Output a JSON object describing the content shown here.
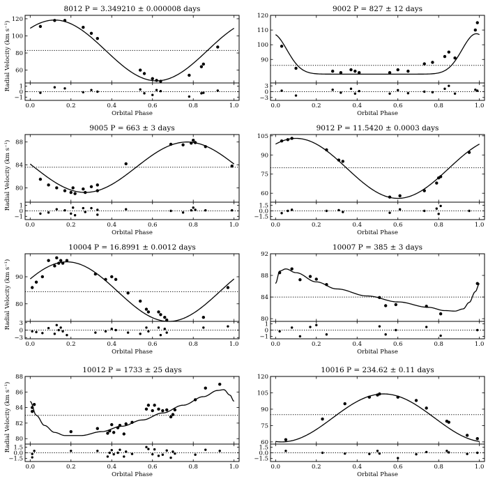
{
  "chart_data": [
    {
      "type": "scatter",
      "title": "8012 P = 3.349210 ± 0.000008 days",
      "xlabel": "Orbital Phase",
      "ylabel": "Radial Velocity (km s⁻¹)",
      "xlim": [
        -0.025,
        1.025
      ],
      "xticks": [
        0,
        0.2,
        0.4,
        0.6,
        0.8,
        1.0
      ],
      "xticklabels": [
        "0.0",
        "0.2",
        "0.4",
        "0.6",
        "0.8",
        "1.0"
      ],
      "ylim": [
        45,
        124
      ],
      "yticks": [
        60,
        80,
        100,
        120
      ],
      "yticklabels": [
        "60",
        "80",
        "100",
        "120"
      ],
      "rlim": [
        -1.6,
        1.6
      ],
      "rticks": [
        -1,
        0,
        1
      ],
      "rticklabels": [
        "−1",
        "0",
        "1"
      ],
      "systemic": 83,
      "model": {
        "type": "sine",
        "mean": 83,
        "amp": 35.5,
        "phase0": 0.12
      },
      "points": {
        "x": [
          0.05,
          0.12,
          0.17,
          0.26,
          0.3,
          0.33,
          0.54,
          0.56,
          0.6,
          0.62,
          0.64,
          0.78,
          0.84,
          0.85,
          0.92
        ],
        "y": [
          111,
          118,
          118,
          110,
          103,
          97,
          60,
          56,
          50,
          48,
          47,
          54,
          64,
          67,
          87
        ]
      },
      "residuals": {
        "x": [
          0.05,
          0.12,
          0.17,
          0.26,
          0.3,
          0.33,
          0.54,
          0.56,
          0.6,
          0.62,
          0.64,
          0.78,
          0.84,
          0.85,
          0.92
        ],
        "y": [
          -0.2,
          0.8,
          0.6,
          -0.1,
          0.3,
          0.0,
          0.4,
          -0.3,
          -0.6,
          0.3,
          0.1,
          -0.9,
          -0.3,
          -0.2,
          0.2
        ]
      }
    },
    {
      "type": "scatter",
      "title": "9002 P = 827 ± 12 days",
      "xlabel": "Orbital Phase",
      "ylabel": "",
      "xlim": [
        -0.025,
        1.025
      ],
      "xticks": [
        0,
        0.2,
        0.4,
        0.6,
        0.8,
        1.0
      ],
      "xticklabels": [
        "0.0",
        "0.2",
        "0.4",
        "0.6",
        "0.8",
        "1.0"
      ],
      "ylim": [
        74,
        120
      ],
      "yticks": [
        90,
        100,
        110,
        120
      ],
      "yticklabels": [
        "90",
        "100",
        "110",
        "120"
      ],
      "rlim": [
        -4.5,
        4.5
      ],
      "rticks": [
        -3,
        0,
        3
      ],
      "rticklabels": [
        "−3",
        "0",
        "3"
      ],
      "systemic": 86,
      "model": {
        "type": "ecc",
        "base": 80,
        "amp": 27.5,
        "phase0": 0.985,
        "width": 0.07
      },
      "points": {
        "x": [
          0.03,
          0.1,
          0.28,
          0.32,
          0.37,
          0.39,
          0.41,
          0.56,
          0.6,
          0.65,
          0.73,
          0.77,
          0.83,
          0.85,
          0.88,
          0.98,
          0.99
        ],
        "y": [
          99,
          84,
          82,
          81,
          83,
          82,
          81,
          81,
          83,
          82,
          87,
          88,
          92,
          95,
          91,
          110,
          115
        ]
      },
      "residuals": {
        "x": [
          0.03,
          0.1,
          0.28,
          0.32,
          0.37,
          0.39,
          0.41,
          0.56,
          0.6,
          0.65,
          0.73,
          0.77,
          0.83,
          0.85,
          0.88,
          0.98,
          0.99
        ],
        "y": [
          0.5,
          -2.0,
          1.0,
          -0.5,
          1.5,
          -1.0,
          0.3,
          -1.0,
          0.8,
          -0.8,
          0.0,
          -0.3,
          1.5,
          3.0,
          -1.0,
          1.0,
          0.5
        ]
      }
    },
    {
      "type": "scatter",
      "title": "9005 P = 663 ± 3 days",
      "xlabel": "Orbital Phase",
      "ylabel": "Radial Velocity (km s⁻¹)",
      "xlim": [
        -0.025,
        1.025
      ],
      "xticks": [
        0,
        0.2,
        0.4,
        0.6,
        0.8,
        1.0
      ],
      "xticklabels": [
        "0.0",
        "0.2",
        "0.4",
        "0.6",
        "0.8",
        "1.0"
      ],
      "ylim": [
        77.5,
        89.3
      ],
      "yticks": [
        80,
        84,
        88
      ],
      "yticklabels": [
        "80",
        "84",
        "88"
      ],
      "rlim": [
        -1.6,
        1.6
      ],
      "rticks": [
        -1,
        0,
        1
      ],
      "rticklabels": [
        "−1",
        "0",
        "1"
      ],
      "systemic": 83.6,
      "model": {
        "type": "sine",
        "mean": 83.6,
        "amp": 4.4,
        "phase0": 0.77
      },
      "points": {
        "x": [
          0.05,
          0.09,
          0.13,
          0.17,
          0.2,
          0.21,
          0.22,
          0.26,
          0.27,
          0.3,
          0.33,
          0.33,
          0.47,
          0.69,
          0.75,
          0.79,
          0.8,
          0.81,
          0.86,
          0.99
        ],
        "y": [
          81.5,
          80.5,
          80.0,
          79.5,
          79.2,
          80.0,
          79.0,
          79.8,
          79.2,
          80.2,
          80.5,
          79.5,
          84.2,
          87.6,
          87.5,
          87.8,
          88.3,
          87.9,
          87.2,
          83.8
        ]
      },
      "residuals": {
        "x": [
          0.05,
          0.09,
          0.13,
          0.17,
          0.2,
          0.21,
          0.22,
          0.26,
          0.27,
          0.3,
          0.33,
          0.33,
          0.47,
          0.69,
          0.75,
          0.79,
          0.8,
          0.81,
          0.86,
          0.99
        ],
        "y": [
          -0.5,
          -0.3,
          0.3,
          0.1,
          -0.5,
          0.6,
          -0.8,
          0.5,
          -0.2,
          0.5,
          0.2,
          -0.7,
          0.3,
          0.0,
          -0.3,
          0.1,
          0.6,
          0.2,
          0.1,
          0.1
        ]
      }
    },
    {
      "type": "scatter",
      "title": "9012 P = 11.5420 ± 0.0003 days",
      "xlabel": "Orbital Phase",
      "ylabel": "",
      "xlim": [
        -0.025,
        1.025
      ],
      "xticks": [
        0,
        0.2,
        0.4,
        0.6,
        0.8,
        1.0
      ],
      "xticklabels": [
        "0.0",
        "0.2",
        "0.4",
        "0.6",
        "0.8",
        "1.0"
      ],
      "ylim": [
        53,
        106
      ],
      "yticks": [
        60,
        75,
        90,
        105
      ],
      "yticklabels": [
        "60",
        "75",
        "90",
        "105"
      ],
      "rlim": [
        -2.3,
        2.3
      ],
      "rticks": [
        -1.5,
        0,
        1.5
      ],
      "rticklabels": [
        "−1.5",
        "0.0",
        "1.5"
      ],
      "systemic": 80,
      "model": {
        "type": "sine",
        "mean": 79.5,
        "amp": 23.5,
        "phase0": 0.1
      },
      "points": {
        "x": [
          0.03,
          0.06,
          0.08,
          0.25,
          0.31,
          0.33,
          0.56,
          0.61,
          0.73,
          0.79,
          0.8,
          0.81,
          0.95
        ],
        "y": [
          101,
          102,
          103,
          94,
          86,
          85,
          57,
          58,
          62,
          68,
          72,
          73,
          92
        ]
      },
      "residuals": {
        "x": [
          0.03,
          0.06,
          0.08,
          0.25,
          0.31,
          0.33,
          0.56,
          0.61,
          0.73,
          0.79,
          0.8,
          0.81,
          0.95
        ],
        "y": [
          -0.6,
          0.0,
          0.3,
          0.0,
          0.2,
          -0.3,
          -0.5,
          0.4,
          0.0,
          0.6,
          -0.8,
          1.3,
          0.0
        ]
      }
    },
    {
      "type": "scatter",
      "title": "10004 P = 16.8991 ± 0.0012 days",
      "xlabel": "Orbital Phase",
      "ylabel": "Radial Velocity (km s⁻¹)",
      "xlim": [
        -0.025,
        1.025
      ],
      "xticks": [
        0,
        0.2,
        0.4,
        0.6,
        0.8,
        1.0
      ],
      "xticklabels": [
        "0.0",
        "0.2",
        "0.4",
        "0.6",
        "0.8",
        "1.0"
      ],
      "ylim": [
        73.5,
        98.5
      ],
      "yticks": [
        80,
        90
      ],
      "yticklabels": [
        "80",
        "90"
      ],
      "rlim": [
        -3.5,
        3.5
      ],
      "rticks": [
        -3,
        0,
        3
      ],
      "rticklabels": [
        "−3",
        "0",
        "3"
      ],
      "systemic": 84.5,
      "model": {
        "type": "sine",
        "mean": 84.5,
        "amp": 11,
        "phase0": 0.18
      },
      "points": {
        "x": [
          0.01,
          0.03,
          0.06,
          0.09,
          0.12,
          0.13,
          0.14,
          0.15,
          0.16,
          0.18,
          0.32,
          0.37,
          0.4,
          0.42,
          0.48,
          0.54,
          0.57,
          0.58,
          0.63,
          0.64,
          0.66,
          0.67,
          0.85,
          0.97
        ],
        "y": [
          86,
          88,
          90,
          96,
          94,
          97,
          95,
          96,
          95,
          96,
          91,
          89,
          90,
          89,
          84,
          81,
          78,
          77,
          77,
          76,
          75,
          74,
          75,
          86
        ]
      },
      "residuals": {
        "x": [
          0.01,
          0.03,
          0.06,
          0.09,
          0.12,
          0.13,
          0.14,
          0.15,
          0.16,
          0.18,
          0.32,
          0.37,
          0.4,
          0.42,
          0.48,
          0.54,
          0.57,
          0.58,
          0.63,
          0.64,
          0.66,
          0.67,
          0.85,
          0.97
        ],
        "y": [
          -0.5,
          -0.8,
          -1.2,
          0.8,
          -1.5,
          2.0,
          0.0,
          1.0,
          -0.5,
          -2.0,
          -1.0,
          -0.5,
          0.5,
          0.0,
          -1.0,
          -1.5,
          1.0,
          -0.5,
          1.0,
          -2.0,
          0.5,
          -1.0,
          1.0,
          1.5
        ]
      }
    },
    {
      "type": "scatter",
      "title": "10007 P = 385 ± 3 days",
      "xlabel": "Orbital Phase",
      "ylabel": "",
      "xlim": [
        -0.025,
        1.025
      ],
      "xticks": [
        0,
        0.2,
        0.4,
        0.6,
        0.8,
        1.0
      ],
      "xticklabels": [
        "0.0",
        "0.2",
        "0.4",
        "0.6",
        "0.8",
        "1.0"
      ],
      "ylim": [
        79.5,
        92
      ],
      "yticks": [
        80,
        84,
        88,
        92
      ],
      "yticklabels": [
        "80",
        "84",
        "88",
        "92"
      ],
      "rlim": [
        -1.4,
        1.4
      ],
      "rticks": [
        -1,
        0,
        1
      ],
      "rticklabels": [
        "−1",
        "0",
        "1"
      ],
      "systemic": 84,
      "model": {
        "type": "knots",
        "x": [
          0.0,
          0.02,
          0.05,
          0.1,
          0.2,
          0.3,
          0.45,
          0.6,
          0.75,
          0.83,
          0.88,
          0.92,
          0.95,
          0.98,
          1.0
        ],
        "y": [
          86.5,
          88.8,
          89.2,
          88.5,
          86.8,
          85.5,
          84.2,
          83.1,
          82.1,
          81.5,
          81.4,
          81.8,
          83.0,
          85.0,
          86.5
        ]
      },
      "points": {
        "x": [
          0.02,
          0.08,
          0.12,
          0.17,
          0.2,
          0.25,
          0.51,
          0.54,
          0.59,
          0.74,
          0.81,
          0.99
        ],
        "y": [
          88.5,
          89.2,
          87.2,
          87.8,
          87.3,
          86.3,
          83.9,
          82.4,
          82.6,
          82.3,
          80.9,
          86.5
        ]
      },
      "residuals": {
        "x": [
          0.02,
          0.08,
          0.12,
          0.17,
          0.2,
          0.25,
          0.51,
          0.54,
          0.59,
          0.74,
          0.81,
          0.99
        ],
        "y": [
          -0.2,
          0.4,
          -1.0,
          0.5,
          0.8,
          -0.7,
          0.6,
          -0.7,
          0.0,
          0.5,
          -0.9,
          0.0
        ]
      }
    },
    {
      "type": "scatter",
      "title": "10012 P = 1733 ± 25 days",
      "xlabel": "Orbital Phase",
      "ylabel": "Radial Velocity (km s⁻¹)",
      "xlim": [
        -0.025,
        1.025
      ],
      "xticks": [
        0,
        0.2,
        0.4,
        0.6,
        0.8,
        1.0
      ],
      "xticklabels": [
        "0.0",
        "0.2",
        "0.4",
        "0.6",
        "0.8",
        "1.0"
      ],
      "ylim": [
        79.3,
        88
      ],
      "yticks": [
        80,
        82,
        84,
        86,
        88
      ],
      "yticklabels": [
        "80",
        "82",
        "84",
        "86",
        "88"
      ],
      "rlim": [
        -2.3,
        2.3
      ],
      "rticks": [
        -1.5,
        0,
        1.5
      ],
      "rticklabels": [
        "−1.5",
        "0.0",
        "1.5"
      ],
      "systemic": 83,
      "model": {
        "type": "knots",
        "x": [
          0.0,
          0.03,
          0.07,
          0.12,
          0.17,
          0.25,
          0.35,
          0.45,
          0.55,
          0.65,
          0.75,
          0.85,
          0.92,
          0.95,
          0.98,
          1.0
        ],
        "y": [
          84.8,
          83.0,
          81.7,
          80.8,
          80.4,
          80.4,
          80.9,
          81.6,
          82.4,
          83.3,
          84.3,
          85.4,
          86.2,
          86.3,
          85.6,
          84.8
        ]
      },
      "points": {
        "x": [
          0.01,
          0.01,
          0.02,
          0.2,
          0.33,
          0.38,
          0.39,
          0.4,
          0.41,
          0.43,
          0.44,
          0.46,
          0.47,
          0.5,
          0.57,
          0.58,
          0.6,
          0.61,
          0.63,
          0.65,
          0.67,
          0.69,
          0.7,
          0.71,
          0.81,
          0.86,
          0.93
        ],
        "y": [
          83.5,
          84.0,
          84.4,
          80.9,
          81.3,
          80.7,
          81.0,
          81.8,
          80.8,
          81.4,
          81.7,
          80.6,
          81.9,
          82.1,
          83.8,
          84.3,
          83.6,
          84.3,
          83.8,
          83.6,
          83.7,
          82.8,
          83.1,
          83.7,
          85.0,
          86.5,
          87.0
        ]
      },
      "residuals": {
        "x": [
          0.01,
          0.01,
          0.02,
          0.2,
          0.33,
          0.38,
          0.39,
          0.4,
          0.41,
          0.43,
          0.44,
          0.46,
          0.47,
          0.5,
          0.57,
          0.58,
          0.6,
          0.61,
          0.63,
          0.65,
          0.67,
          0.69,
          0.7,
          0.71,
          0.81,
          0.86,
          0.93
        ],
        "y": [
          -0.3,
          -1.2,
          0.5,
          0.5,
          0.5,
          -1.0,
          0.0,
          0.7,
          -0.4,
          0.0,
          0.8,
          -1.0,
          0.3,
          -0.3,
          1.5,
          1.0,
          -0.4,
          0.9,
          -0.8,
          -0.5,
          0.6,
          -1.3,
          0.3,
          -0.2,
          -0.5,
          0.8,
          0.5
        ]
      }
    },
    {
      "type": "scatter",
      "title": "10016 P = 234.62 ± 0.11 days",
      "xlabel": "Orbital Phase",
      "ylabel": "",
      "xlim": [
        -0.025,
        1.025
      ],
      "xticks": [
        0,
        0.2,
        0.4,
        0.6,
        0.8,
        1.0
      ],
      "xticklabels": [
        "0.0",
        "0.2",
        "0.4",
        "0.6",
        "0.8",
        "1.0"
      ],
      "ylim": [
        58,
        120
      ],
      "yticks": [
        60,
        75,
        90,
        105,
        120
      ],
      "yticklabels": [
        "60",
        "75",
        "90",
        "105",
        "120"
      ],
      "rlim": [
        -2.3,
        2.3
      ],
      "rticks": [
        -1.5,
        0,
        1.5
      ],
      "rticklabels": [
        "−1.5",
        "0.0",
        "1.5"
      ],
      "systemic": 85,
      "model": {
        "type": "sine",
        "mean": 82,
        "amp": 22,
        "phase0": 0.53
      },
      "points": {
        "x": [
          0.05,
          0.23,
          0.34,
          0.46,
          0.5,
          0.51,
          0.6,
          0.69,
          0.74,
          0.84,
          0.85,
          0.94,
          0.99
        ],
        "y": [
          62,
          81,
          95,
          101,
          103,
          104,
          101,
          98,
          91,
          79,
          78,
          66,
          63
        ]
      },
      "residuals": {
        "x": [
          0.05,
          0.23,
          0.34,
          0.46,
          0.5,
          0.51,
          0.6,
          0.69,
          0.74,
          0.84,
          0.85,
          0.94,
          0.99
        ],
        "y": [
          0.5,
          0.0,
          -0.2,
          -0.3,
          0.5,
          -0.2,
          -1.4,
          -0.4,
          0.2,
          0.5,
          0.1,
          -0.3,
          0.0
        ]
      }
    }
  ]
}
